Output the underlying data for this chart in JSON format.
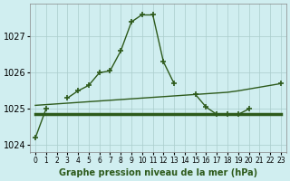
{
  "title": "Graphe pression niveau de la mer (hPa)",
  "bg_color": "#d0eef0",
  "line_color": "#2d5a1b",
  "grid_color": "#aacccc",
  "hours": [
    0,
    1,
    2,
    3,
    4,
    5,
    6,
    7,
    8,
    9,
    10,
    11,
    12,
    13,
    14,
    15,
    16,
    17,
    18,
    19,
    20,
    21,
    22,
    23
  ],
  "pressure_main": [
    1024.2,
    1025.0,
    null,
    1025.3,
    1025.5,
    1025.65,
    1026.0,
    1026.05,
    1026.6,
    1027.4,
    1027.6,
    1027.6,
    1026.3,
    1025.7,
    null,
    1025.4,
    1025.05,
    1024.85,
    1024.85,
    1024.85,
    1025.0,
    null,
    null,
    1025.7
  ],
  "pressure_line1": [
    1024.85,
    1024.85,
    1024.85,
    1024.85,
    1024.85,
    1024.85,
    1024.85,
    1024.85,
    1024.85,
    1024.85,
    1024.85,
    1024.85,
    1024.85,
    1024.85,
    1024.85,
    1024.85,
    1024.85,
    1024.85,
    1024.85,
    1024.85,
    1024.85,
    1024.85,
    1024.85,
    1024.85
  ],
  "pressure_line2": [
    1025.1,
    1025.12,
    1025.14,
    1025.16,
    1025.18,
    1025.2,
    1025.22,
    1025.24,
    1025.26,
    1025.28,
    1025.3,
    1025.32,
    1025.34,
    1025.36,
    1025.38,
    1025.4,
    1025.42,
    1025.44,
    1025.46,
    1025.5,
    1025.55,
    1025.6,
    1025.65,
    1025.7
  ],
  "ylim": [
    1023.8,
    1027.9
  ],
  "yticks": [
    1024,
    1025,
    1026,
    1027
  ],
  "xlim": [
    -0.5,
    23.5
  ]
}
